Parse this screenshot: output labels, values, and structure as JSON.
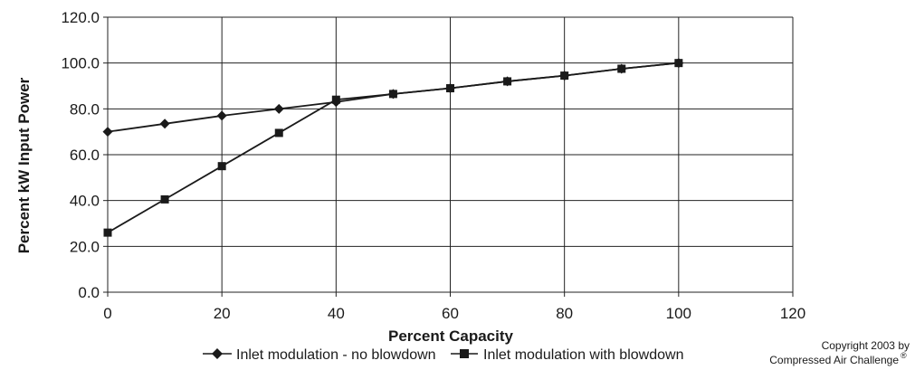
{
  "chart_data": {
    "type": "line",
    "xlabel": "Percent Capacity",
    "ylabel": "Percent kW Input Power",
    "xlim": [
      0,
      120
    ],
    "ylim": [
      0,
      120
    ],
    "x_ticks": [
      "0",
      "20",
      "40",
      "60",
      "80",
      "100",
      "120"
    ],
    "y_ticks": [
      "0.0",
      "20.0",
      "40.0",
      "60.0",
      "80.0",
      "100.0",
      "120.0"
    ],
    "grid": true,
    "legend_position": "bottom",
    "series": [
      {
        "name": "Inlet modulation - no blowdown",
        "marker": "diamond",
        "color": "#1a1a1a",
        "x": [
          0,
          10,
          20,
          30,
          40,
          50,
          60,
          70,
          80,
          90,
          100
        ],
        "y": [
          70.0,
          73.5,
          77.0,
          80.0,
          83.0,
          86.5,
          89.0,
          92.0,
          94.5,
          97.5,
          100.0
        ]
      },
      {
        "name": "Inlet modulation with blowdown",
        "marker": "square",
        "color": "#1a1a1a",
        "x": [
          0,
          10,
          20,
          30,
          40,
          50,
          60,
          70,
          80,
          90,
          100
        ],
        "y": [
          26.0,
          40.5,
          55.0,
          69.5,
          84.0,
          86.5,
          89.0,
          92.0,
          94.5,
          97.5,
          100.0
        ]
      }
    ]
  },
  "copyright": {
    "line1": "Copyright 2003 by",
    "line2": "Compressed Air Challenge",
    "mark": "®"
  }
}
